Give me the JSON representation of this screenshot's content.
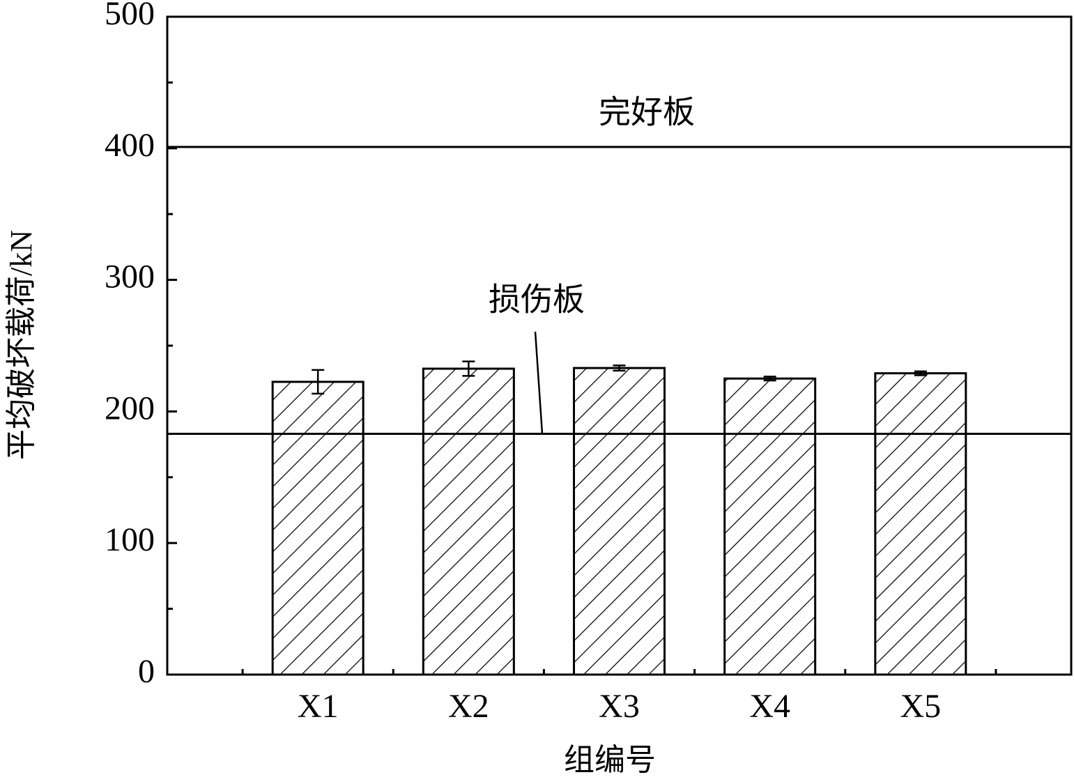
{
  "chart_data": {
    "type": "bar",
    "ylabel": "平均破坏载荷/kN",
    "xlabel": "组编号",
    "categories": [
      "X1",
      "X2",
      "X3",
      "X4",
      "X5"
    ],
    "values": [
      222.5,
      232.5,
      233,
      225,
      229
    ],
    "errors": [
      9,
      5.5,
      2,
      1.5,
      1.5
    ],
    "color": "#000000",
    "fill": "#ffffff",
    "hatch": true,
    "ylim": [
      0,
      500
    ],
    "yticks": [
      0,
      100,
      200,
      300,
      400,
      500
    ],
    "yminor_ticks": [
      50,
      150,
      250,
      350,
      450
    ],
    "reference_lines": [
      {
        "value": 401,
        "label": "完好板"
      },
      {
        "value": 183,
        "label": "损伤板"
      }
    ]
  }
}
